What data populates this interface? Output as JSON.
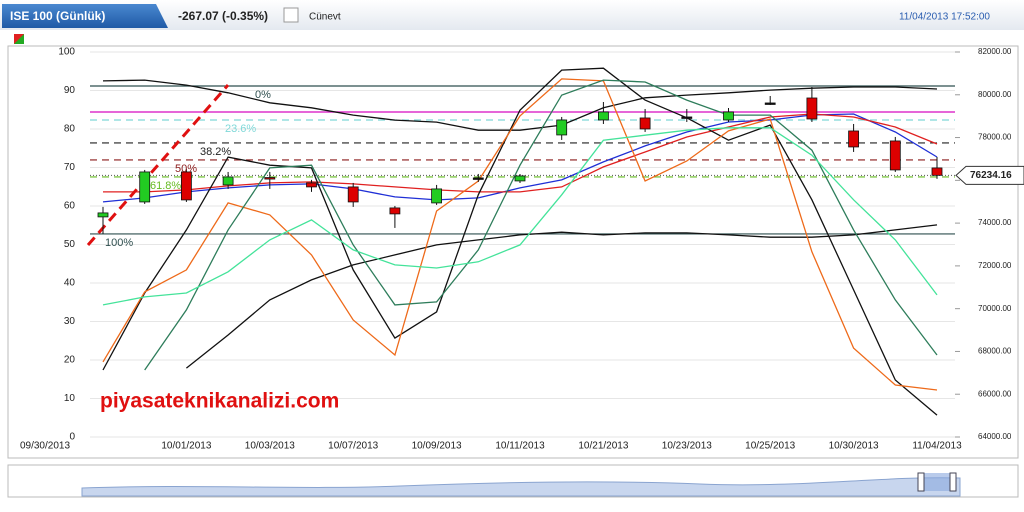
{
  "chart_data": {
    "type": "candlestick",
    "title": "ISE 100 (Günlük)",
    "change": "-267.07 (-0.35%)",
    "user": "Cünevt",
    "timestamp": "11/04/2013 17:52:00",
    "watermark": "piyasateknikanalizi.com",
    "categories": [
      "09/30/2013",
      null,
      "10/01/2013",
      null,
      "10/03/2013",
      null,
      "10/07/2013",
      null,
      "10/09/2013",
      null,
      "10/11/2013",
      null,
      "10/21/2013",
      null,
      "10/23/2013",
      null,
      "10/25/2013",
      null,
      "10/30/2013",
      null,
      "11/04/2013"
    ],
    "ylim": [
      0,
      100
    ],
    "yticks": [
      0,
      10,
      20,
      30,
      40,
      50,
      60,
      70,
      80,
      90,
      100
    ],
    "y2lim": [
      64000,
      82000
    ],
    "y2ticks": [
      {
        "value": 64000,
        "label": "64000.00"
      },
      {
        "value": 66000,
        "label": "66000.00"
      },
      {
        "value": 68000,
        "label": "68000.00"
      },
      {
        "value": 70000,
        "label": "70000.00"
      },
      {
        "value": 72000,
        "label": "72000.00"
      },
      {
        "value": 74000,
        "label": "74000.00"
      },
      {
        "value": 76000,
        "label": "76000.00"
      },
      {
        "value": 78000,
        "label": "78000.00"
      },
      {
        "value": 80000,
        "label": "80000.00"
      },
      {
        "value": 82000,
        "label": "82000.00"
      }
    ],
    "grid": true,
    "last_price": 76234.16,
    "candles": {
      "up_color": "#22cc22",
      "down_color": "#dd0000",
      "axis": "y2",
      "open": [
        74290,
        74990,
        76392,
        75785,
        76130,
        75878,
        75692,
        74710,
        74944,
        76112,
        75972,
        78122,
        78822,
        78916,
        78963,
        78822,
        79617,
        79850,
        78308,
        77841,
        76579
      ],
      "high": [
        74757,
        76486,
        76533,
        76392,
        76392,
        76019,
        75878,
        74803,
        75785,
        76299,
        76299,
        78963,
        79663,
        79336,
        79336,
        79383,
        79944,
        80364,
        78635,
        78028,
        77093
      ],
      "low": [
        73495,
        74897,
        74990,
        75598,
        75598,
        75458,
        74757,
        73775,
        74850,
        75925,
        75878,
        77888,
        78635,
        78262,
        78729,
        78729,
        79523,
        78729,
        77327,
        76392,
        76066
      ],
      "close": [
        74477,
        76392,
        75084,
        76159,
        76110,
        75692,
        74990,
        74430,
        75598,
        76112,
        76205,
        78822,
        79196,
        78402,
        78963,
        79196,
        79617,
        78869,
        77561,
        76486,
        76234.16
      ]
    },
    "levels": [
      {
        "label": "0%",
        "value": 80411,
        "color": "#2f4f4f",
        "dashed": false
      },
      {
        "label": "23.6%",
        "value": 78822,
        "color": "#7fd8d8",
        "dashed": true
      },
      {
        "label": "38.2%",
        "value": 77748,
        "color": "#222222",
        "dashed": true
      },
      {
        "label": "50%",
        "value": 76953,
        "color": "#8b1a1a",
        "dashed": true
      },
      {
        "label": "61.8%",
        "value": 76159,
        "color": "#66bb22",
        "dashed": true
      },
      {
        "label": "100%",
        "value": 73495,
        "color": "#2f4f4f",
        "dashed": false
      }
    ],
    "reference_lines": [
      {
        "value": 79196,
        "color": "#dd33cc"
      }
    ],
    "series": [
      {
        "color": "#1f2fd6",
        "axis": "y2",
        "values": [
          74990,
          75178,
          75458,
          75645,
          75785,
          75832,
          75598,
          75224,
          75084,
          75178,
          75645,
          76019,
          76860,
          77608,
          78262,
          78729,
          78822,
          79056,
          79103,
          78262,
          77093
        ]
      },
      {
        "color": "#e02020",
        "axis": "y2",
        "values": [
          75458,
          75458,
          75551,
          75738,
          75878,
          75925,
          75832,
          75692,
          75551,
          75458,
          75458,
          75692,
          76626,
          77327,
          78028,
          78495,
          78963,
          79103,
          78963,
          78495,
          77701
        ]
      },
      {
        "color": "#111111",
        "values": [
          92.5,
          92.7,
          91.4,
          89.4,
          86.8,
          85.5,
          83.6,
          82.3,
          81.8,
          79.7,
          79.7,
          81.0,
          85.5,
          88.1,
          88.8,
          89.4,
          90.1,
          90.6,
          90.9,
          90.9,
          90.4
        ]
      },
      {
        "color": "#111111",
        "values": [
          null,
          null,
          17.9,
          26.5,
          35.6,
          40.8,
          44.7,
          47.3,
          49.9,
          51.2,
          52.5,
          53.2,
          52.5,
          53.0,
          53.0,
          52.5,
          51.9,
          51.9,
          52.5,
          53.8,
          55.1
        ]
      },
      {
        "color": "#111111",
        "values": [
          17.4,
          37.4,
          53.8,
          72.7,
          70.6,
          69.9,
          43.4,
          25.7,
          32.5,
          62.9,
          84.9,
          95.3,
          95.8,
          87.5,
          82.9,
          77.1,
          81.0,
          61.6,
          38.2,
          14.8,
          5.7
        ]
      },
      {
        "color": "#ee6a1a",
        "values": [
          19.5,
          37.7,
          43.4,
          60.8,
          57.7,
          47.3,
          30.4,
          21.3,
          58.7,
          66.5,
          83.4,
          93.0,
          92.5,
          66.5,
          71.7,
          79.5,
          82.6,
          48.1,
          23.1,
          13.5,
          12.2
        ]
      },
      {
        "color": "#2e7d5b",
        "values": [
          null,
          17.4,
          33.0,
          53.8,
          69.9,
          70.6,
          49.9,
          34.3,
          35.1,
          48.6,
          70.6,
          88.8,
          92.7,
          92.2,
          87.5,
          83.6,
          83.6,
          74.5,
          53.8,
          35.6,
          21.3
        ]
      },
      {
        "color": "#44e39a",
        "values": [
          34.3,
          36.4,
          37.4,
          42.9,
          51.2,
          56.4,
          48.6,
          44.7,
          43.9,
          45.5,
          49.9,
          62.9,
          77.1,
          78.4,
          79.7,
          80.3,
          80.3,
          73.2,
          61.6,
          51.2,
          36.9
        ]
      }
    ]
  }
}
